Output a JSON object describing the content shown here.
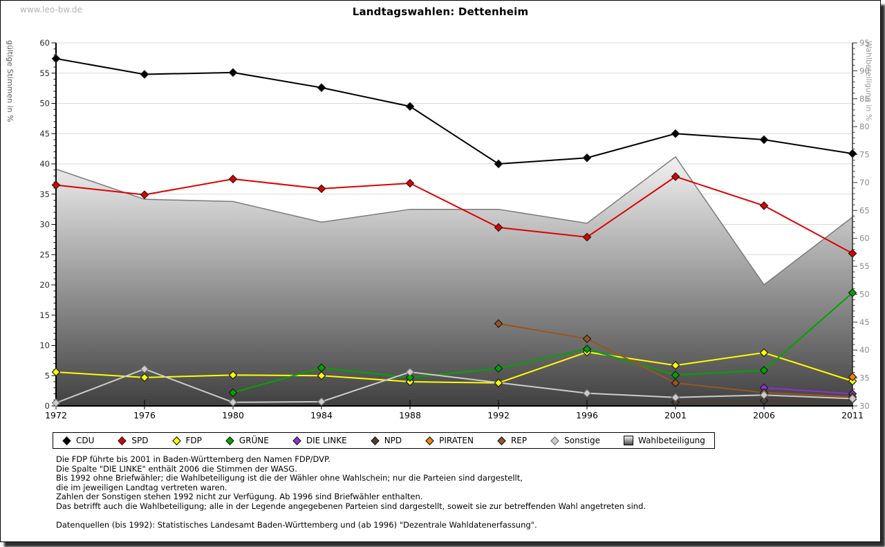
{
  "watermark": "www.leo-bw.de",
  "title": "Landtagswahlen: Dettenheim",
  "axes": {
    "left_label": "gültige Stimmen in %",
    "right_label": "Wahlbeteiligung in %",
    "left_ticks": [
      0,
      5,
      10,
      15,
      20,
      25,
      30,
      35,
      40,
      45,
      50,
      55,
      60
    ],
    "right_ticks": [
      30,
      35,
      40,
      45,
      50,
      55,
      60,
      65,
      70,
      75,
      80,
      85,
      90,
      95
    ]
  },
  "chart_data": {
    "type": "line",
    "title": "Landtagswahlen: Dettenheim",
    "x": [
      1972,
      1976,
      1980,
      1984,
      1988,
      1992,
      1996,
      2001,
      2006,
      2011
    ],
    "xlabel": "",
    "ylabel_left": "gültige Stimmen in %",
    "ylabel_right": "Wahlbeteiligung in %",
    "ylim_left": [
      0,
      60
    ],
    "ylim_right": [
      30,
      95
    ],
    "grid": true,
    "legend_position": "bottom",
    "series": [
      {
        "name": "CDU",
        "axis": "left",
        "color": "#000000",
        "edge": "#1a1a1a",
        "values": [
          57.4,
          54.8,
          55.1,
          52.6,
          49.5,
          40.0,
          41.0,
          45.0,
          44.0,
          41.7
        ]
      },
      {
        "name": "SPD",
        "axis": "left",
        "color": "#dd0000",
        "edge": "#1a1a1a",
        "values": [
          36.5,
          34.9,
          37.5,
          35.9,
          36.8,
          29.5,
          27.9,
          37.9,
          33.1,
          25.2
        ]
      },
      {
        "name": "FDP",
        "axis": "left",
        "color": "#ffff00",
        "edge": "#1a1a1a",
        "values": [
          5.6,
          4.7,
          5.1,
          5.0,
          4.0,
          3.8,
          8.9,
          6.7,
          8.8,
          4.1
        ]
      },
      {
        "name": "GRÜNE",
        "axis": "left",
        "color": "#00a400",
        "edge": "#1a1a1a",
        "values": [
          null,
          null,
          2.2,
          6.3,
          4.7,
          6.2,
          9.4,
          5.1,
          5.9,
          18.7
        ]
      },
      {
        "name": "DIE LINKE",
        "axis": "left",
        "color": "#9030d0",
        "edge": "#1a1a1a",
        "values": [
          null,
          null,
          null,
          null,
          null,
          null,
          null,
          null,
          3.0,
          2.0
        ]
      },
      {
        "name": "NPD",
        "axis": "left",
        "color": "#4f3f2e",
        "edge": "#1a1a1a",
        "values": [
          null,
          null,
          null,
          null,
          null,
          null,
          null,
          0.6,
          0.9,
          1.1
        ]
      },
      {
        "name": "PIRATEN",
        "axis": "left",
        "color": "#f08400",
        "edge": "#1a1a1a",
        "values": [
          null,
          null,
          null,
          null,
          null,
          null,
          null,
          null,
          null,
          4.8
        ]
      },
      {
        "name": "REP",
        "axis": "left",
        "color": "#995522",
        "edge": "#1a1a1a",
        "values": [
          null,
          null,
          null,
          null,
          null,
          13.6,
          11.1,
          3.8,
          2.2,
          1.5
        ]
      },
      {
        "name": "Sonstige",
        "axis": "left",
        "color": "#cccccc",
        "edge": "#707070",
        "values": [
          0.5,
          6.1,
          0.6,
          0.7,
          5.6,
          null,
          2.1,
          1.4,
          1.8,
          1.2
        ]
      },
      {
        "name": "Wahlbeteiligung",
        "axis": "right",
        "type": "area",
        "color": "#b8b8b8",
        "edge": "#7a7a7a",
        "values": [
          72.4,
          67.0,
          66.6,
          62.9,
          65.2,
          65.2,
          62.7,
          74.6,
          51.7,
          63.8
        ]
      }
    ]
  },
  "footnotes": [
    "Die FDP führte bis 2001 in Baden-Württemberg den Namen FDP/DVP.",
    "Die Spalte \"DIE LINKE\" enthält 2006 die Stimmen der WASG.",
    "Bis 1992 ohne Briefwähler; die Wahlbeteiligung ist die der Wähler ohne Wahlschein; nur die Parteien sind dargestellt,",
    "die im jeweiligen Landtag vertreten waren.",
    "Zahlen der Sonstigen stehen 1992 nicht zur Verfügung. Ab 1996 sind Briefwähler enthalten.",
    "Das betrifft auch die Wahlbeteiligung; alle in der Legende angegebenen Parteien sind dargestellt, soweit sie zur betreffenden Wahl angetreten sind.",
    "",
    "Datenquellen (bis 1992): Statistisches Landesamt Baden-Württemberg und (ab 1996) \"Dezentrale Wahldatenerfassung\"."
  ],
  "colors": {
    "grid": "#d9d9d9",
    "area_top": "#f2f2f2",
    "area_bottom": "#404040",
    "area_stroke": "#7a7a7a",
    "axis": "#000000",
    "tick_label_left": "#2a2a2a",
    "tick_label_right": "#8c8c8c",
    "frame_shadow": "#2e2e2e"
  }
}
